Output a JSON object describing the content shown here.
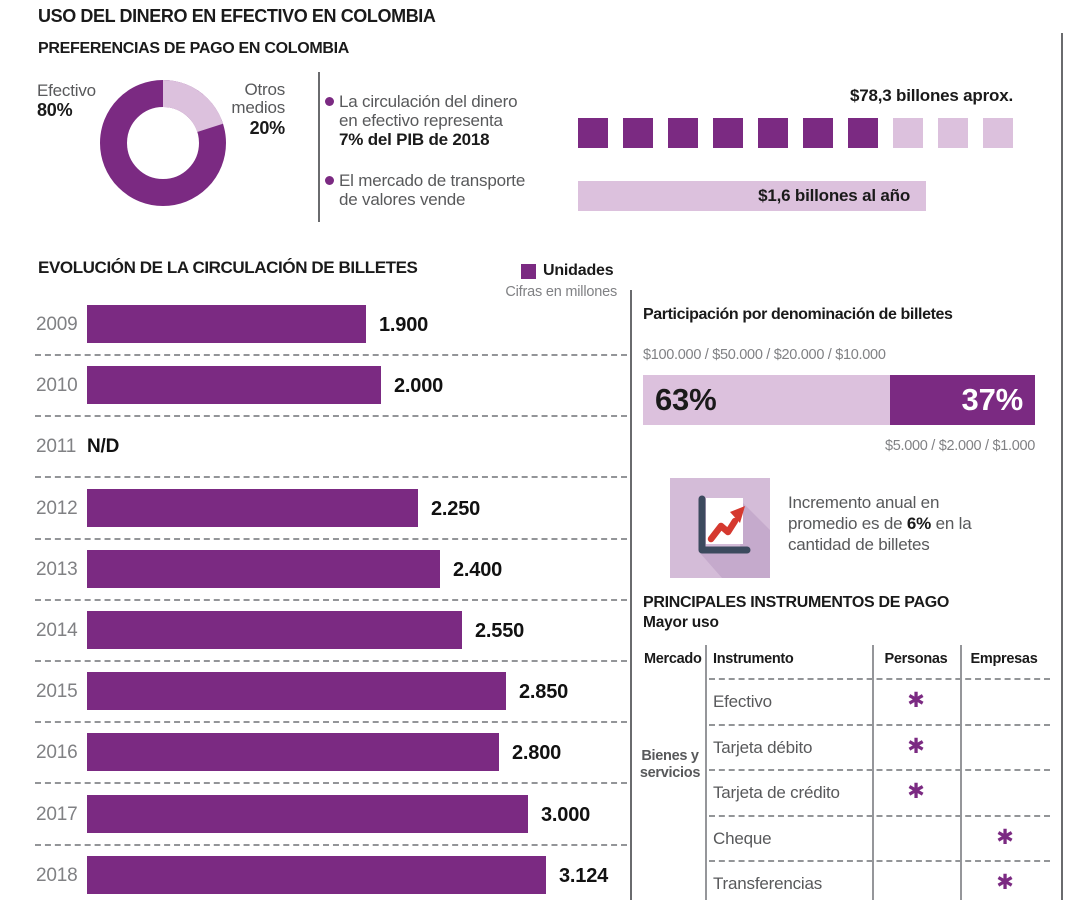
{
  "header": {
    "title": "USO DEL DINERO EN EFECTIVO EN COLOMBIA"
  },
  "preferences": {
    "title": "PREFERENCIAS DE PAGO EN COLOMBIA",
    "donut": {
      "efectivo_label": "Efectivo",
      "efectivo_value": "80%",
      "otros_line1": "Otros",
      "otros_line2": "medios",
      "otros_value": "20%"
    },
    "fact_circulacion": {
      "line1": "La circulación del dinero",
      "line2": "en efectivo representa",
      "line3_bold": "7% del PIB de 2018",
      "amount_label": "$78,3 billones aprox.",
      "squares": {
        "filled": 7,
        "light": 3
      }
    },
    "fact_transporte": {
      "line1": "El mercado de transporte",
      "line2": "de valores vende",
      "amount_label": "$1,6 billones al año"
    }
  },
  "incremento": {
    "line1": "Incremento anual en",
    "line2_pre": "promedio es de ",
    "line2_bold": "6%",
    "line2_post": " en la",
    "line3": "cantidad de billetes"
  },
  "instrumentos": {
    "group_line1": "Bienes y",
    "group_line2": "servicios",
    "mark_glyph": "✱"
  },
  "colors": {
    "primary_purple": "#7B2A82",
    "light_purple": "#DCC1DD",
    "icon_background": "#D4BCD8",
    "icon_navy": "#3C4A5E",
    "icon_red": "#D5392F",
    "text_gray": "#58595B",
    "text_light_gray": "#808184"
  },
  "chart_data": [
    {
      "type": "pie",
      "style": "donut",
      "title": "PREFERENCIAS DE PAGO EN COLOMBIA",
      "labels": [
        "Efectivo",
        "Otros medios"
      ],
      "values": [
        80,
        20
      ],
      "unit": "%",
      "colors": [
        "#7B2A82",
        "#DCC1DD"
      ]
    },
    {
      "type": "bar",
      "orientation": "horizontal",
      "title": "EVOLUCIÓN DE LA CIRCULACIÓN DE BILLETES",
      "legend": [
        "Unidades"
      ],
      "units_note": "Cifras en millones",
      "categories": [
        "2009",
        "2010",
        "2011",
        "2012",
        "2013",
        "2014",
        "2015",
        "2016",
        "2017",
        "2018"
      ],
      "values": [
        1900,
        2000,
        null,
        2250,
        2400,
        2550,
        2850,
        2800,
        3000,
        3124
      ],
      "value_labels": [
        "1.900",
        "2.000",
        "N/D",
        "2.250",
        "2.400",
        "2.550",
        "2.850",
        "2.800",
        "3.000",
        "3.124"
      ],
      "no_data_label": "N/D"
    },
    {
      "type": "bar",
      "subtype": "100-percent-stacked",
      "title": "Participación por denominación de billetes",
      "categories": [
        "$100.000 / $50.000 / $20.000 / $10.000",
        "$5.000 / $2.000 / $1.000"
      ],
      "values": [
        63,
        37
      ],
      "value_labels": [
        "63%",
        "37%"
      ],
      "colors": [
        "#DCC1DD",
        "#7B2A82"
      ]
    },
    {
      "type": "table",
      "title": "PRINCIPALES INSTRUMENTOS DE PAGO",
      "subtitle": "Mayor uso",
      "columns": [
        "Mercado",
        "Instrumento",
        "Personas",
        "Empresas"
      ],
      "row_group": "Bienes y servicios",
      "rows": [
        {
          "instrumento": "Efectivo",
          "personas": true,
          "empresas": false
        },
        {
          "instrumento": "Tarjeta débito",
          "personas": true,
          "empresas": false
        },
        {
          "instrumento": "Tarjeta de crédito",
          "personas": true,
          "empresas": false
        },
        {
          "instrumento": "Cheque",
          "personas": false,
          "empresas": true
        },
        {
          "instrumento": "Transferencias",
          "personas": false,
          "empresas": true
        }
      ]
    }
  ]
}
